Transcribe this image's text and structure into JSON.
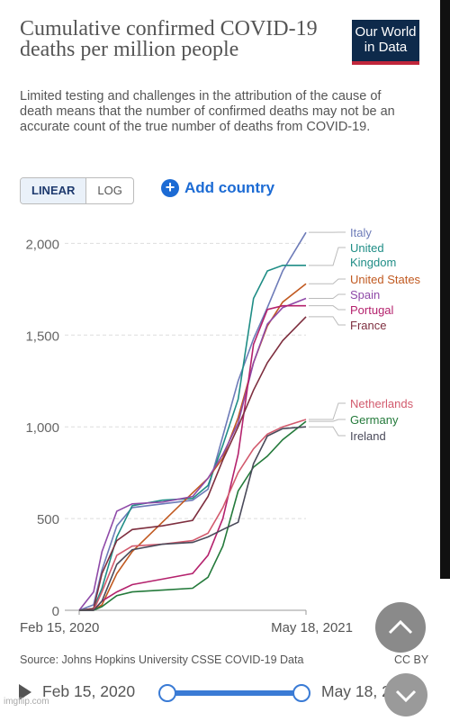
{
  "header": {
    "title": "Cumulative confirmed COVID-19 deaths per million people",
    "subtitle": "Limited testing and challenges in the attribution of the cause of death means that the number of confirmed deaths may not be an accurate count of the true number of deaths from COVID-19.",
    "logo_line1": "Our World",
    "logo_line2": "in Data"
  },
  "controls": {
    "linear_label": "LINEAR",
    "log_label": "LOG",
    "add_country_label": "Add country",
    "selected_scale": "linear"
  },
  "footer": {
    "source": "Source: Johns Hopkins University CSSE COVID-19 Data",
    "license": "CC BY",
    "watermark": "imgflip.com"
  },
  "timeline": {
    "start": "Feb 15, 2020",
    "end": "May 18, 2021"
  },
  "chart_data": {
    "type": "line",
    "x_start": "Feb 15, 2020",
    "x_end": "May 18, 2021",
    "x_tick_labels": [
      "Feb 15, 2020",
      "May 18, 2021"
    ],
    "y_ticks": [
      0,
      500,
      1000,
      1500,
      2000
    ],
    "y_tick_labels": [
      "0",
      "500",
      "1,000",
      "1,500",
      "2,000"
    ],
    "ylim": [
      0,
      2100
    ],
    "grid": "horizontal dashed",
    "legend": "right, labels at line ends",
    "x": [
      "2020-02-15",
      "2020-03-15",
      "2020-04-01",
      "2020-05-01",
      "2020-06-01",
      "2020-08-01",
      "2020-10-01",
      "2020-11-01",
      "2020-12-01",
      "2021-01-01",
      "2021-02-01",
      "2021-03-01",
      "2021-04-01",
      "2021-05-18"
    ],
    "series": [
      {
        "name": "Italy",
        "color": "#6d7bb8",
        "values": [
          0,
          30,
          220,
          460,
          560,
          580,
          600,
          660,
          950,
          1250,
          1480,
          1650,
          1850,
          2060
        ]
      },
      {
        "name": "United Kingdom",
        "color": "#1f8d86",
        "values": [
          0,
          10,
          120,
          400,
          570,
          600,
          610,
          680,
          900,
          1150,
          1700,
          1850,
          1880,
          1880
        ]
      },
      {
        "name": "United States",
        "color": "#c15a21",
        "values": [
          0,
          0,
          30,
          200,
          320,
          480,
          640,
          720,
          830,
          1050,
          1350,
          1550,
          1680,
          1780
        ]
      },
      {
        "name": "Spain",
        "color": "#8f4aa8",
        "values": [
          0,
          100,
          320,
          540,
          580,
          590,
          620,
          720,
          850,
          1020,
          1350,
          1560,
          1650,
          1700
        ]
      },
      {
        "name": "Portugal",
        "color": "#b4226d",
        "values": [
          0,
          0,
          50,
          100,
          140,
          170,
          200,
          300,
          500,
          850,
          1450,
          1640,
          1660,
          1660
        ]
      },
      {
        "name": "France",
        "color": "#7e2f3f",
        "values": [
          0,
          10,
          200,
          380,
          440,
          460,
          490,
          620,
          820,
          1000,
          1200,
          1350,
          1470,
          1600
        ]
      },
      {
        "name": "Netherlands",
        "color": "#d25a6d",
        "values": [
          0,
          0,
          100,
          300,
          350,
          360,
          380,
          420,
          560,
          750,
          880,
          960,
          1000,
          1040
        ]
      },
      {
        "name": "Germany",
        "color": "#247a3b",
        "values": [
          0,
          0,
          20,
          80,
          100,
          110,
          120,
          180,
          350,
          650,
          780,
          840,
          930,
          1030
        ]
      },
      {
        "name": "Ireland",
        "color": "#4a4a5a",
        "values": [
          0,
          0,
          50,
          250,
          330,
          360,
          370,
          400,
          440,
          480,
          800,
          950,
          990,
          1000
        ]
      }
    ]
  }
}
